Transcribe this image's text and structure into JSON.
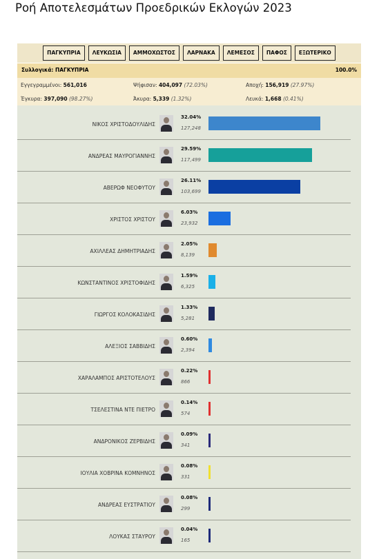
{
  "title": "Ροή Αποτελεσμάτων Προεδρικών Εκλογών 2023",
  "tabs": [
    "ΠΑΓΚΥΠΡΙΑ",
    "ΛΕΥΚΩΣΙΑ",
    "ΑΜΜΟΧΩΣΤΟΣ",
    "ΛΑΡΝΑΚΑ",
    "ΛΕΜΕΣΟΣ",
    "ΠΑΦΟΣ",
    "ΕΞΩΤΕΡΙΚΟ"
  ],
  "summary": {
    "label": "Συλλογικά: ΠΑΓΚΥΠΡΙΑ",
    "counted": "100.0%"
  },
  "stats": [
    {
      "label": "Εγγεγραμμένοι:",
      "value": "561,016"
    },
    {
      "label": "Ψήφισαν:",
      "value": "404,097",
      "share": "(72.03%)"
    },
    {
      "label": "Αποχή:",
      "value": "156,919",
      "share": "(27.97%)"
    },
    {
      "label": "Έγκυρα:",
      "value": "397,090",
      "share": "(98.27%)"
    },
    {
      "label": "Άκυρα:",
      "value": "5,339",
      "share": "(1.32%)"
    },
    {
      "label": "Λευκά:",
      "value": "1,668",
      "share": "(0.41%)"
    }
  ],
  "candidates": [
    {
      "name": "ΝΙΚΟΣ ΧΡΙΣΤΟΔΟΥΛΙΔΗΣ",
      "percent": {
        "value": 32.04,
        "label": "32.04%"
      },
      "votes": "127,248",
      "color": "#3d86cc"
    },
    {
      "name": "ΑΝΔΡΕΑΣ ΜΑΥΡΟΓΙΑΝΝΗΣ",
      "percent": {
        "value": 29.59,
        "label": "29.59%"
      },
      "votes": "117,499",
      "color": "#16a09a"
    },
    {
      "name": "ΑΒΕΡΩΦ ΝΕΟΦΥΤΟΥ",
      "percent": {
        "value": 26.11,
        "label": "26.11%"
      },
      "votes": "103,699",
      "color": "#0a3fa3"
    },
    {
      "name": "ΧΡΙΣΤΟΣ ΧΡΙΣΤΟΥ",
      "percent": {
        "value": 6.03,
        "label": "6.03%"
      },
      "votes": "23,932",
      "color": "#1a6ee0"
    },
    {
      "name": "ΑΧΙΛΛΕΑΣ ΔΗΜΗΤΡΙΑΔΗΣ",
      "percent": {
        "value": 2.05,
        "label": "2.05%"
      },
      "votes": "8,139",
      "color": "#e08a2e"
    },
    {
      "name": "ΚΩΝΣΤΑΝΤΙΝΟΣ ΧΡΙΣΤΟΦΙΔΗΣ",
      "percent": {
        "value": 1.59,
        "label": "1.59%"
      },
      "votes": "6,325",
      "color": "#1ab0e8"
    },
    {
      "name": "ΓΙΩΡΓΟΣ ΚΟΛΟΚΑΣΙΔΗΣ",
      "percent": {
        "value": 1.33,
        "label": "1.33%"
      },
      "votes": "5,281",
      "color": "#1f2a5e"
    },
    {
      "name": "ΑΛΕΞΙΟΣ ΣΑΒΒΙΔΗΣ",
      "percent": {
        "value": 0.6,
        "label": "0.60%"
      },
      "votes": "2,394",
      "color": "#2f8ae0"
    },
    {
      "name": "ΧΑΡΑΛΑΜΠΟΣ ΑΡΙΣΤΟΤΕΛΟΥΣ",
      "percent": {
        "value": 0.22,
        "label": "0.22%"
      },
      "votes": "866",
      "color": "#e03030"
    },
    {
      "name": "ΤΣΕΛΕΣΤΙΝΑ ΝΤΕ ΠΙΕΤΡΟ",
      "percent": {
        "value": 0.14,
        "label": "0.14%"
      },
      "votes": "574",
      "color": "#e03030"
    },
    {
      "name": "ΑΝΔΡΟΝΙΚΟΣ ΖΕΡΒΙΔΗΣ",
      "percent": {
        "value": 0.09,
        "label": "0.09%"
      },
      "votes": "341",
      "color": "#2a2a7a"
    },
    {
      "name": "ΙΟΥΛΙΑ ΧΟΒΡΙΝΑ ΚΟΜΝΗΝΟΣ",
      "percent": {
        "value": 0.08,
        "label": "0.08%"
      },
      "votes": "331",
      "color": "#f0e030"
    },
    {
      "name": "ΑΝΔΡΕΑΣ ΕΥΣΤΡΑΤΙΟΥ",
      "percent": {
        "value": 0.08,
        "label": "0.08%"
      },
      "votes": "299",
      "color": "#1e2a7a"
    },
    {
      "name": "ΛΟΥΚΑΣ ΣΤΑΥΡΟΥ",
      "percent": {
        "value": 0.04,
        "label": "0.04%"
      },
      "votes": "165",
      "color": "#1e2a7a"
    }
  ]
}
